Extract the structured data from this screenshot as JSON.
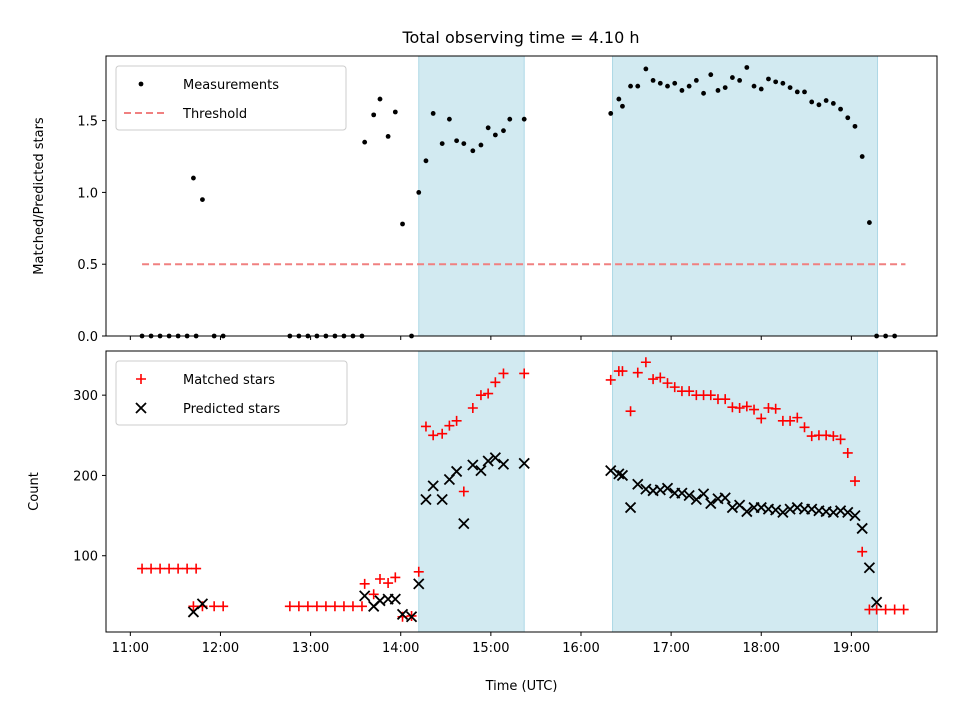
{
  "title": "Total observing time = 4.10 h",
  "chart_data": [
    {
      "type": "scatter",
      "ylabel": "Matched/Predicted stars",
      "xlim": [
        10.73,
        19.95
      ],
      "ylim": [
        0,
        1.95
      ],
      "yticks": [
        0.0,
        0.5,
        1.0,
        1.5
      ],
      "ytick_labels": [
        "0.0",
        "0.5",
        "1.0",
        "1.5"
      ],
      "legend": {
        "placement": "top-left",
        "entries": [
          {
            "label": "Measurements",
            "marker": "dot",
            "color": "#000000"
          },
          {
            "label": "Threshold",
            "marker": "dashed-line",
            "color": "#f08080"
          }
        ]
      },
      "threshold": {
        "value": 0.5,
        "x_range": [
          11.13,
          19.6
        ],
        "color": "#f08080"
      },
      "shaded_regions": [
        {
          "x0": 14.2,
          "x1": 15.37,
          "color": "#add8e6"
        },
        {
          "x0": 16.35,
          "x1": 19.29,
          "color": "#add8e6"
        }
      ],
      "series": [
        {
          "name": "Measurements",
          "color": "#000000",
          "points": [
            [
              11.13,
              0
            ],
            [
              11.23,
              0
            ],
            [
              11.33,
              0
            ],
            [
              11.43,
              0
            ],
            [
              11.53,
              0
            ],
            [
              11.63,
              0
            ],
            [
              11.73,
              0
            ],
            [
              11.93,
              0
            ],
            [
              12.03,
              0
            ],
            [
              11.7,
              1.1
            ],
            [
              11.8,
              0.95
            ],
            [
              12.77,
              0
            ],
            [
              12.87,
              0
            ],
            [
              12.97,
              0
            ],
            [
              13.07,
              0
            ],
            [
              13.17,
              0
            ],
            [
              13.27,
              0
            ],
            [
              13.37,
              0
            ],
            [
              13.47,
              0
            ],
            [
              13.57,
              0
            ],
            [
              13.6,
              1.35
            ],
            [
              13.7,
              1.54
            ],
            [
              13.77,
              1.65
            ],
            [
              13.86,
              1.39
            ],
            [
              13.94,
              1.56
            ],
            [
              14.02,
              0.78
            ],
            [
              14.12,
              0.0
            ],
            [
              14.2,
              1.0
            ],
            [
              14.28,
              1.22
            ],
            [
              14.36,
              1.55
            ],
            [
              14.46,
              1.34
            ],
            [
              14.54,
              1.51
            ],
            [
              14.62,
              1.36
            ],
            [
              14.7,
              1.34
            ],
            [
              14.8,
              1.29
            ],
            [
              14.89,
              1.33
            ],
            [
              14.97,
              1.45
            ],
            [
              15.05,
              1.4
            ],
            [
              15.14,
              1.43
            ],
            [
              15.21,
              1.51
            ],
            [
              15.37,
              1.51
            ],
            [
              16.33,
              1.55
            ],
            [
              16.42,
              1.65
            ],
            [
              16.46,
              1.6
            ],
            [
              16.55,
              1.74
            ],
            [
              16.63,
              1.74
            ],
            [
              16.72,
              1.86
            ],
            [
              16.8,
              1.78
            ],
            [
              16.88,
              1.76
            ],
            [
              16.96,
              1.74
            ],
            [
              17.04,
              1.76
            ],
            [
              17.12,
              1.71
            ],
            [
              17.2,
              1.74
            ],
            [
              17.28,
              1.78
            ],
            [
              17.36,
              1.69
            ],
            [
              17.44,
              1.82
            ],
            [
              17.52,
              1.71
            ],
            [
              17.6,
              1.73
            ],
            [
              17.68,
              1.8
            ],
            [
              17.76,
              1.78
            ],
            [
              17.84,
              1.87
            ],
            [
              17.92,
              1.74
            ],
            [
              18.0,
              1.72
            ],
            [
              18.08,
              1.79
            ],
            [
              18.16,
              1.77
            ],
            [
              18.24,
              1.76
            ],
            [
              18.32,
              1.73
            ],
            [
              18.4,
              1.7
            ],
            [
              18.48,
              1.7
            ],
            [
              18.56,
              1.63
            ],
            [
              18.64,
              1.61
            ],
            [
              18.72,
              1.64
            ],
            [
              18.8,
              1.62
            ],
            [
              18.88,
              1.58
            ],
            [
              18.96,
              1.52
            ],
            [
              19.04,
              1.46
            ],
            [
              19.12,
              1.25
            ],
            [
              19.2,
              0.79
            ],
            [
              19.28,
              0
            ],
            [
              19.38,
              0
            ],
            [
              19.48,
              0
            ]
          ]
        }
      ]
    },
    {
      "type": "scatter",
      "xlabel": "Time (UTC)",
      "ylabel": "Count",
      "xlim": [
        10.73,
        19.95
      ],
      "ylim": [
        5,
        355
      ],
      "yticks": [
        100,
        200,
        300
      ],
      "ytick_labels": [
        "100",
        "200",
        "300"
      ],
      "xticks": [
        11,
        12,
        13,
        14,
        15,
        16,
        17,
        18,
        19
      ],
      "xtick_labels": [
        "11:00",
        "12:00",
        "13:00",
        "14:00",
        "15:00",
        "16:00",
        "17:00",
        "18:00",
        "19:00"
      ],
      "legend": {
        "placement": "top-left",
        "entries": [
          {
            "label": "Matched stars",
            "marker": "plus",
            "color": "#ff0000"
          },
          {
            "label": "Predicted stars",
            "marker": "x",
            "color": "#000000"
          }
        ]
      },
      "shaded_regions": [
        {
          "x0": 14.2,
          "x1": 15.37,
          "color": "#add8e6"
        },
        {
          "x0": 16.35,
          "x1": 19.29,
          "color": "#add8e6"
        }
      ],
      "series": [
        {
          "name": "Matched stars",
          "marker": "plus",
          "color": "#ff0000",
          "points": [
            [
              11.13,
              84
            ],
            [
              11.23,
              84
            ],
            [
              11.33,
              84
            ],
            [
              11.43,
              84
            ],
            [
              11.53,
              84
            ],
            [
              11.63,
              84
            ],
            [
              11.73,
              84
            ],
            [
              11.7,
              37
            ],
            [
              11.8,
              37
            ],
            [
              11.93,
              37
            ],
            [
              12.03,
              37
            ],
            [
              12.77,
              37
            ],
            [
              12.87,
              37
            ],
            [
              12.97,
              37
            ],
            [
              13.07,
              37
            ],
            [
              13.17,
              37
            ],
            [
              13.27,
              37
            ],
            [
              13.37,
              37
            ],
            [
              13.47,
              37
            ],
            [
              13.57,
              37
            ],
            [
              13.6,
              65
            ],
            [
              13.7,
              52
            ],
            [
              13.77,
              71
            ],
            [
              13.86,
              66
            ],
            [
              13.94,
              73
            ],
            [
              14.02,
              24
            ],
            [
              14.12,
              25
            ],
            [
              14.2,
              80
            ],
            [
              14.28,
              261
            ],
            [
              14.36,
              250
            ],
            [
              14.46,
              252
            ],
            [
              14.54,
              262
            ],
            [
              14.62,
              268
            ],
            [
              14.7,
              180
            ],
            [
              14.8,
              284
            ],
            [
              14.89,
              300
            ],
            [
              14.97,
              302
            ],
            [
              15.05,
              316
            ],
            [
              15.14,
              327
            ],
            [
              15.37,
              327
            ],
            [
              16.33,
              319
            ],
            [
              16.42,
              330
            ],
            [
              16.46,
              330
            ],
            [
              16.55,
              280
            ],
            [
              16.63,
              328
            ],
            [
              16.72,
              341
            ],
            [
              16.8,
              320
            ],
            [
              16.88,
              322
            ],
            [
              16.96,
              315
            ],
            [
              17.04,
              310
            ],
            [
              17.12,
              305
            ],
            [
              17.2,
              305
            ],
            [
              17.28,
              300
            ],
            [
              17.36,
              300
            ],
            [
              17.44,
              300
            ],
            [
              17.52,
              295
            ],
            [
              17.6,
              295
            ],
            [
              17.68,
              285
            ],
            [
              17.76,
              284
            ],
            [
              17.84,
              286
            ],
            [
              17.92,
              282
            ],
            [
              18.0,
              271
            ],
            [
              18.08,
              284
            ],
            [
              18.16,
              283
            ],
            [
              18.24,
              268
            ],
            [
              18.32,
              268
            ],
            [
              18.4,
              272
            ],
            [
              18.48,
              260
            ],
            [
              18.56,
              249
            ],
            [
              18.64,
              250
            ],
            [
              18.72,
              250
            ],
            [
              18.8,
              249
            ],
            [
              18.88,
              245
            ],
            [
              18.96,
              228
            ],
            [
              19.04,
              193
            ],
            [
              19.12,
              105
            ],
            [
              19.2,
              33
            ],
            [
              19.28,
              33
            ],
            [
              19.38,
              33
            ],
            [
              19.48,
              33
            ],
            [
              19.58,
              33
            ]
          ]
        },
        {
          "name": "Predicted stars",
          "marker": "x",
          "color": "#000000",
          "points": [
            [
              11.7,
              30
            ],
            [
              11.8,
              40
            ],
            [
              13.6,
              50
            ],
            [
              13.7,
              37
            ],
            [
              13.77,
              44
            ],
            [
              13.86,
              46
            ],
            [
              13.94,
              46
            ],
            [
              14.02,
              27
            ],
            [
              14.12,
              24
            ],
            [
              14.2,
              65
            ],
            [
              14.28,
              170
            ],
            [
              14.36,
              187
            ],
            [
              14.46,
              170
            ],
            [
              14.54,
              195
            ],
            [
              14.62,
              205
            ],
            [
              14.7,
              140
            ],
            [
              14.8,
              213
            ],
            [
              14.89,
              206
            ],
            [
              14.97,
              218
            ],
            [
              15.05,
              222
            ],
            [
              15.14,
              214
            ],
            [
              15.37,
              215
            ],
            [
              16.33,
              206
            ],
            [
              16.42,
              202
            ],
            [
              16.46,
              200
            ],
            [
              16.55,
              160
            ],
            [
              16.63,
              189
            ],
            [
              16.72,
              183
            ],
            [
              16.8,
              181
            ],
            [
              16.88,
              182
            ],
            [
              16.96,
              184
            ],
            [
              17.04,
              178
            ],
            [
              17.12,
              178
            ],
            [
              17.2,
              175
            ],
            [
              17.28,
              170
            ],
            [
              17.36,
              177
            ],
            [
              17.44,
              165
            ],
            [
              17.52,
              171
            ],
            [
              17.6,
              172
            ],
            [
              17.68,
              160
            ],
            [
              17.76,
              163
            ],
            [
              17.84,
              155
            ],
            [
              17.92,
              160
            ],
            [
              18.0,
              160
            ],
            [
              18.08,
              158
            ],
            [
              18.16,
              157
            ],
            [
              18.24,
              154
            ],
            [
              18.32,
              158
            ],
            [
              18.4,
              160
            ],
            [
              18.48,
              158
            ],
            [
              18.56,
              158
            ],
            [
              18.64,
              156
            ],
            [
              18.72,
              155
            ],
            [
              18.8,
              154
            ],
            [
              18.88,
              156
            ],
            [
              18.96,
              154
            ],
            [
              19.04,
              150
            ],
            [
              19.12,
              134
            ],
            [
              19.2,
              85
            ],
            [
              19.28,
              42
            ]
          ]
        }
      ]
    }
  ]
}
